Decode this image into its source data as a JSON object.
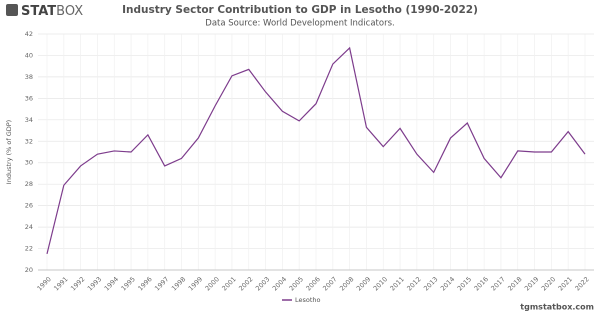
{
  "brand": {
    "strong": "STAT",
    "light": "BOX"
  },
  "footer": "tgmstatbox.com",
  "chart_data": {
    "type": "line",
    "title": "Industry Sector Contribution to GDP in Lesotho (1990-2022)",
    "subtitle": "Data Source: World Development Indicators.",
    "y_label": "Industry (% of GDP)",
    "categories": [
      "1990",
      "1991",
      "1992",
      "1993",
      "1994",
      "1995",
      "1996",
      "1997",
      "1998",
      "1999",
      "2000",
      "2001",
      "2002",
      "2003",
      "2004",
      "2005",
      "2006",
      "2007",
      "2008",
      "2009",
      "2010",
      "2011",
      "2012",
      "2013",
      "2014",
      "2015",
      "2016",
      "2017",
      "2018",
      "2019",
      "2020",
      "2021",
      "2022"
    ],
    "series": [
      {
        "name": "Lesotho",
        "color": "#7d3c8c",
        "values": [
          21.5,
          27.9,
          29.7,
          30.8,
          31.1,
          31.0,
          32.6,
          29.7,
          30.4,
          32.3,
          35.3,
          38.1,
          38.7,
          36.6,
          34.8,
          33.9,
          35.5,
          39.2,
          40.7,
          33.3,
          31.5,
          33.2,
          30.8,
          29.1,
          32.3,
          33.7,
          30.4,
          28.6,
          31.1,
          31.0,
          31.0,
          32.9,
          30.8
        ]
      }
    ],
    "ylim": [
      20,
      42
    ],
    "yticks": [
      20,
      22,
      24,
      26,
      28,
      30,
      32,
      34,
      36,
      38,
      40,
      42
    ],
    "grid": true,
    "legend": "bottom"
  }
}
